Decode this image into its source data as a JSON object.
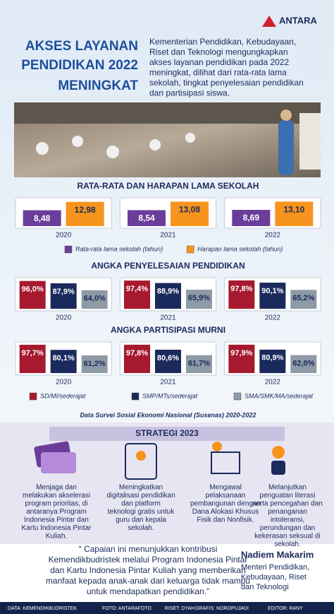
{
  "logo": "ANTARA",
  "header": {
    "title_lines": [
      "AKSES LAYANAN",
      "PENDIDIKAN 2022",
      "MENINGKAT"
    ],
    "description_lines": [
      "Kementerian Pendidikan, Kebudayaan,",
      "Riset dan Teknologi mengungkapkan",
      "akses layanan pendidikan pada 2022",
      "meningkat, dilihat dari rata-rata lama",
      "sekolah, tingkat penyelesaian pendidikan",
      "dan partisipasi siswa."
    ]
  },
  "chart_data": [
    {
      "type": "bar",
      "title": "RATA-RATA DAN HARAPAN LAMA SEKOLAH",
      "categories": [
        "2020",
        "2021",
        "2022"
      ],
      "ylim": [
        0,
        14
      ],
      "series": [
        {
          "name": "Rata-rata lama sekolah (tahun)",
          "color": "#6a3d9a",
          "values": [
            8.48,
            8.54,
            8.69
          ],
          "value_labels": [
            "8,48",
            "8,54",
            "8,69"
          ]
        },
        {
          "name": "Harapan lama sekolah (tahun)",
          "color": "#f7941d",
          "values": [
            12.98,
            13.08,
            13.1
          ],
          "value_labels": [
            "12,98",
            "13,08",
            "13,10"
          ]
        }
      ]
    },
    {
      "type": "bar",
      "title": "ANGKA PENYELESAIAN PENDIDIKAN",
      "categories": [
        "2020",
        "2021",
        "2022"
      ],
      "ylim": [
        0,
        100
      ],
      "series": [
        {
          "color": "#a6192e",
          "values": [
            96.0,
            97.4,
            97.8
          ],
          "value_labels": [
            "96,0%",
            "97,4%",
            "97,8%"
          ]
        },
        {
          "color": "#1b2a5c",
          "values": [
            87.9,
            88.9,
            90.1
          ],
          "value_labels": [
            "87,9%",
            "88,9%",
            "90,1%"
          ]
        },
        {
          "color": "#8e9aa6",
          "values": [
            64.0,
            65.9,
            65.2
          ],
          "value_labels": [
            "64,0%",
            "65,9%",
            "65,2%"
          ]
        }
      ]
    },
    {
      "type": "bar",
      "title": "ANGKA PARTISIPASI MURNI",
      "categories": [
        "2020",
        "2021",
        "2022"
      ],
      "ylim": [
        0,
        100
      ],
      "series": [
        {
          "name": "SD/MI/sederajat",
          "color": "#a6192e",
          "values": [
            97.7,
            97.8,
            97.9
          ],
          "value_labels": [
            "97,7%",
            "97,8%",
            "97,9%"
          ]
        },
        {
          "name": "SMP/MTs/sederajat",
          "color": "#1b2a5c",
          "values": [
            80.1,
            80.6,
            80.9
          ],
          "value_labels": [
            "80,1%",
            "80,6%",
            "80,9%"
          ]
        },
        {
          "name": "SMA/SMK/MA/sederajat",
          "color": "#8e9aa6",
          "values": [
            61.2,
            61.7,
            62.0
          ],
          "value_labels": [
            "61,2%",
            "61,7%",
            "62,0%"
          ]
        }
      ]
    }
  ],
  "source": "Data Survei Sosial Ekonomi Nasional (Susenas) 2020-2022",
  "strategy": {
    "title": "STRATEGI 2023",
    "items": [
      {
        "lines": [
          "Menjaga dan",
          "melakukan akselerasi",
          "program prioritas, di",
          "antaranya Program",
          "Indonesia Pintar dan",
          "Kartu Indonesia Pintar",
          "Kuliah."
        ]
      },
      {
        "lines": [
          "Meningkatkan",
          "digitalisasi pendidikan",
          "dan platform",
          "teknologi gratis untuk",
          "guru dan kepala",
          "sekolah."
        ]
      },
      {
        "lines": [
          "Mengawal",
          "pelaksanaan",
          "pembangunan dengan",
          "Dana Alokasi Khusus",
          "Fisik dan Nonfisik."
        ]
      },
      {
        "lines": [
          "Melanjutkan",
          "penguatan literasi",
          "serta pencegahan dan",
          "penanganan",
          "intoleransi,",
          "perundungan dan",
          "kekerasan seksual di",
          "sekolah."
        ]
      }
    ]
  },
  "quote": {
    "lines": [
      "“ Capaian ini menunjukkan kontribusi",
      "Kemendikbudristek melalui Program Indonesia Pintar",
      "dan Kartu Indonesia Pintar Kuliah yang memberikan",
      "manfaat kepada anak-anak dari keluarga tidak mampu",
      "untuk mendapatkan pendidikan.”"
    ],
    "name": "Nadiem Makarim",
    "role_lines": [
      "Menteri Pendidikan,",
      "Kebudayaan, Riset",
      "dan Teknologi"
    ]
  },
  "footer": [
    "DATA: KEMENDIKBUDRISTEK",
    "FOTO: ANTARAFOTO",
    "RISET: DYAH",
    "GRAFIS: NOROPUJADI",
    "EDITOR: RANY"
  ]
}
